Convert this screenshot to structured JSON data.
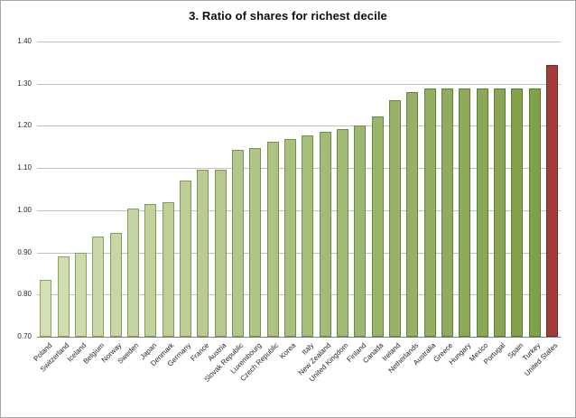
{
  "chart_data": {
    "type": "bar",
    "title": "3. Ratio of shares for richest decile",
    "categories": [
      "Poland",
      "Switzerland",
      "Iceland",
      "Belgium",
      "Norway",
      "Sweden",
      "Japan",
      "Denmark",
      "Germany",
      "France",
      "Austria",
      "Slovak Republic",
      "Luxembourg",
      "Czech Republic",
      "Korea",
      "Italy",
      "New Zealand",
      "United Kingdom",
      "Finland",
      "Canada",
      "Ireland",
      "Netherlands",
      "Australia",
      "Greece",
      "Hungary",
      "Mexico",
      "Portugal",
      "Spain",
      "Turkey",
      "United States"
    ],
    "values": [
      0.835,
      0.89,
      0.9,
      0.937,
      0.947,
      1.005,
      1.015,
      1.02,
      1.07,
      1.095,
      1.097,
      1.143,
      1.147,
      1.163,
      1.168,
      1.178,
      1.185,
      1.193,
      1.2,
      1.222,
      1.26,
      1.28,
      1.288,
      1.288,
      1.288,
      1.288,
      1.288,
      1.288,
      1.288,
      1.345
    ],
    "highlight_category": "United States",
    "xlabel": "",
    "ylabel": "",
    "ylim": [
      0.7,
      1.4
    ],
    "ytick_step": 0.1,
    "ytick_labels": [
      "0.70",
      "0.80",
      "0.90",
      "1.00",
      "1.10",
      "1.20",
      "1.30",
      "1.40"
    ],
    "grid": true,
    "legend": "none",
    "colors": {
      "green_fill_light": "#d3dfb5",
      "green_fill_dark": "#81a04a",
      "green_border_light": "#8ca55f",
      "green_border_dark": "#5a7930",
      "highlight_fill": "#a23c38",
      "highlight_border": "#6f2b27",
      "gridline": "#c0c0c0",
      "axis_line": "#7f7f7f",
      "tick_text": "#262626",
      "title_text": "#0d0d0d",
      "frame_border": "#a6a6a6",
      "background": "#ffffff"
    }
  }
}
